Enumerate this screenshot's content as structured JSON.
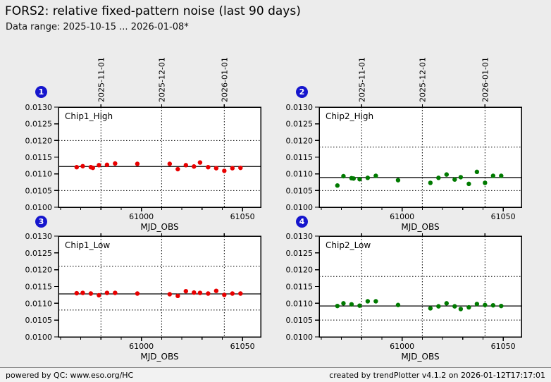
{
  "header": {
    "title": "FORS2: relative fixed-pattern noise (last 90 days)",
    "subtitle": "Data range: 2025-10-15 ... 2026-01-08*"
  },
  "footer": {
    "left": "powered by QC: www.eso.org/HC",
    "right": "created by trendPlotter v4.1.2 on 2026-01-12T17:17:01"
  },
  "colors": {
    "page_bg": "#ececec",
    "plot_bg": "#ffffff",
    "axis": "#000000",
    "red_series": "#e80000",
    "green_series": "#007a00",
    "badge_blue": "#1616cd"
  },
  "chart_data": [
    {
      "type": "scatter",
      "badge": "1",
      "label": "Chip1_High",
      "series_color": "#e80000",
      "xlabel": "MJD_OBS",
      "xlim": [
        60959,
        61059
      ],
      "ylim": [
        0.01,
        0.013
      ],
      "yticks": [
        0.01,
        0.0105,
        0.011,
        0.0115,
        0.012,
        0.0125,
        0.013
      ],
      "xticks_major": [
        61000,
        61050
      ],
      "xticks_minor": [
        60960,
        60970,
        60980,
        60990,
        61010,
        61020,
        61030,
        61040
      ],
      "date_marks": [
        {
          "mjd": 60980,
          "label": "2025-11-01"
        },
        {
          "mjd": 61010,
          "label": "2025-12-01"
        },
        {
          "mjd": 61041,
          "label": "2026-01-01"
        }
      ],
      "mean_line": 0.01122,
      "limit_lines": [
        0.0105,
        0.012
      ],
      "grid": "dotted",
      "points": [
        [
          60968,
          0.0112
        ],
        [
          60971,
          0.01123
        ],
        [
          60975,
          0.0112
        ],
        [
          60976,
          0.01118
        ],
        [
          60979,
          0.01126
        ],
        [
          60983,
          0.01127
        ],
        [
          60987,
          0.01131
        ],
        [
          60998,
          0.0113
        ],
        [
          61014,
          0.0113
        ],
        [
          61018,
          0.01114
        ],
        [
          61022,
          0.01126
        ],
        [
          61026,
          0.01122
        ],
        [
          61029,
          0.01134
        ],
        [
          61033,
          0.0112
        ],
        [
          61037,
          0.01117
        ],
        [
          61041,
          0.01109
        ],
        [
          61045,
          0.01117
        ],
        [
          61049,
          0.01118
        ]
      ]
    },
    {
      "type": "scatter",
      "badge": "2",
      "label": "Chip2_High",
      "series_color": "#007a00",
      "xlabel": "MJD_OBS",
      "xlim": [
        60959,
        61059
      ],
      "ylim": [
        0.01,
        0.013
      ],
      "yticks": [
        0.01,
        0.0105,
        0.011,
        0.0115,
        0.012,
        0.0125,
        0.013
      ],
      "xticks_major": [
        61000,
        61050
      ],
      "xticks_minor": [
        60960,
        60970,
        60980,
        60990,
        61010,
        61020,
        61030,
        61040
      ],
      "date_marks": [
        {
          "mjd": 60980,
          "label": "2025-11-01"
        },
        {
          "mjd": 61010,
          "label": "2025-12-01"
        },
        {
          "mjd": 61041,
          "label": "2026-01-01"
        }
      ],
      "mean_line": 0.01089,
      "limit_lines": [
        0.0105,
        0.0118
      ],
      "grid": "dotted",
      "points": [
        [
          60968,
          0.01065
        ],
        [
          60971,
          0.01093
        ],
        [
          60975,
          0.01087
        ],
        [
          60976,
          0.01086
        ],
        [
          60979,
          0.01084
        ],
        [
          60983,
          0.01088
        ],
        [
          60987,
          0.01094
        ],
        [
          60998,
          0.01081
        ],
        [
          61014,
          0.01073
        ],
        [
          61018,
          0.01088
        ],
        [
          61022,
          0.01098
        ],
        [
          61026,
          0.01083
        ],
        [
          61029,
          0.0109
        ],
        [
          61033,
          0.0107
        ],
        [
          61037,
          0.01106
        ],
        [
          61041,
          0.01073
        ],
        [
          61045,
          0.01094
        ],
        [
          61049,
          0.01094
        ]
      ]
    },
    {
      "type": "scatter",
      "badge": "3",
      "label": "Chip1_Low",
      "series_color": "#e80000",
      "xlabel": "MJD_OBS",
      "xlim": [
        60959,
        61059
      ],
      "ylim": [
        0.01,
        0.013
      ],
      "yticks": [
        0.01,
        0.0105,
        0.011,
        0.0115,
        0.012,
        0.0125,
        0.013
      ],
      "xticks_major": [
        61000,
        61050
      ],
      "xticks_minor": [
        60960,
        60970,
        60980,
        60990,
        61010,
        61020,
        61030,
        61040
      ],
      "date_marks": [
        {
          "mjd": 60980,
          "label": "2025-11-01"
        },
        {
          "mjd": 61010,
          "label": "2025-12-01"
        },
        {
          "mjd": 61041,
          "label": "2026-01-01"
        }
      ],
      "mean_line": 0.01128,
      "limit_lines": [
        0.0108,
        0.0121
      ],
      "grid": "dotted",
      "points": [
        [
          60968,
          0.0113
        ],
        [
          60971,
          0.01131
        ],
        [
          60975,
          0.01129
        ],
        [
          60979,
          0.01124
        ],
        [
          60983,
          0.01131
        ],
        [
          60987,
          0.01131
        ],
        [
          60998,
          0.01129
        ],
        [
          61014,
          0.01127
        ],
        [
          61018,
          0.01122
        ],
        [
          61022,
          0.01136
        ],
        [
          61026,
          0.01132
        ],
        [
          61029,
          0.01131
        ],
        [
          61033,
          0.01129
        ],
        [
          61037,
          0.01137
        ],
        [
          61041,
          0.01125
        ],
        [
          61045,
          0.01129
        ],
        [
          61049,
          0.01129
        ]
      ]
    },
    {
      "type": "scatter",
      "badge": "4",
      "label": "Chip2_Low",
      "series_color": "#007a00",
      "xlabel": "MJD_OBS",
      "xlim": [
        60959,
        61059
      ],
      "ylim": [
        0.01,
        0.013
      ],
      "yticks": [
        0.01,
        0.0105,
        0.011,
        0.0115,
        0.012,
        0.0125,
        0.013
      ],
      "xticks_major": [
        61000,
        61050
      ],
      "xticks_minor": [
        60960,
        60970,
        60980,
        60990,
        61010,
        61020,
        61030,
        61040
      ],
      "date_marks": [
        {
          "mjd": 60980,
          "label": "2025-11-01"
        },
        {
          "mjd": 61010,
          "label": "2025-12-01"
        },
        {
          "mjd": 61041,
          "label": "2026-01-01"
        }
      ],
      "mean_line": 0.01092,
      "limit_lines": [
        0.0105,
        0.0118
      ],
      "grid": "dotted",
      "points": [
        [
          60968,
          0.01092
        ],
        [
          60971,
          0.011
        ],
        [
          60975,
          0.01097
        ],
        [
          60979,
          0.01093
        ],
        [
          60983,
          0.01106
        ],
        [
          60987,
          0.01106
        ],
        [
          60998,
          0.01095
        ],
        [
          61014,
          0.01085
        ],
        [
          61018,
          0.01091
        ],
        [
          61022,
          0.011
        ],
        [
          61026,
          0.01091
        ],
        [
          61029,
          0.01083
        ],
        [
          61033,
          0.01088
        ],
        [
          61037,
          0.01098
        ],
        [
          61041,
          0.01095
        ],
        [
          61045,
          0.01094
        ],
        [
          61049,
          0.01092
        ]
      ]
    }
  ]
}
